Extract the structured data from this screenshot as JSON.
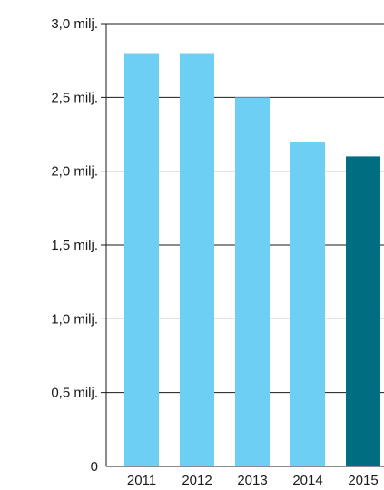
{
  "chart_data": {
    "type": "bar",
    "title": "",
    "xlabel": "",
    "ylabel": "",
    "categories": [
      "2011",
      "2012",
      "2013",
      "2014",
      "2015"
    ],
    "values": [
      2.8,
      2.8,
      2.5,
      2.2,
      2.1
    ],
    "ylim": [
      0,
      3.0
    ],
    "yticks": [
      0,
      0.5,
      1.0,
      1.5,
      2.0,
      2.5,
      3.0
    ],
    "ytick_labels": [
      "0",
      "0,5 milj.",
      "1,0 milj.",
      "1,5 milj.",
      "2,0 milj.",
      "2,5 milj.",
      "3,0 milj."
    ],
    "grid": "horizontal",
    "colors": {
      "bar": "#6ecff5",
      "highlight_bar": "#006e80",
      "axis": "#1a1a1a",
      "grid": "#1a1a1a"
    },
    "highlight_index": 4
  }
}
